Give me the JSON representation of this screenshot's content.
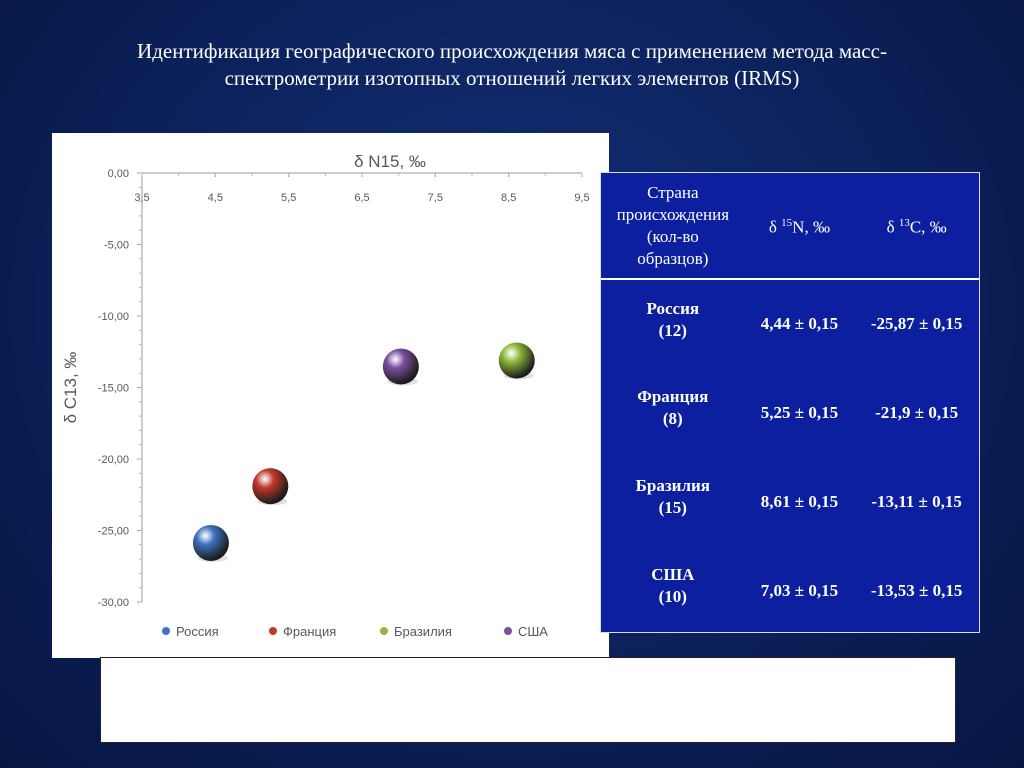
{
  "slide": {
    "title_line1": "Идентификация географического происхождения мяса с применением метода масс-",
    "title_line2": "спектрометрии изотопных отношений легких элементов (IRMS)"
  },
  "chart_data": {
    "type": "scatter",
    "title": "δ N15, ‰",
    "xlabel": "δ N15, ‰",
    "ylabel": "δ C13, ‰",
    "xlim": [
      3.5,
      9.5
    ],
    "ylim": [
      -30,
      0
    ],
    "x_axis_position": "top",
    "x_ticks": [
      "3,5",
      "4,5",
      "5,5",
      "6,5",
      "7,5",
      "8,5",
      "9,5"
    ],
    "y_ticks": [
      "0,00",
      "-5,00",
      "-10,00",
      "-15,00",
      "-20,00",
      "-25,00",
      "-30,00"
    ],
    "legend_position": "bottom",
    "series": [
      {
        "name": "Россия",
        "color": "#3f72c0",
        "x": 4.44,
        "y": -25.87
      },
      {
        "name": "Франция",
        "color": "#c0392b",
        "x": 5.25,
        "y": -21.9
      },
      {
        "name": "Бразилия",
        "color": "#8db83a",
        "x": 8.61,
        "y": -13.11
      },
      {
        "name": "США",
        "color": "#7b4fa0",
        "x": 7.03,
        "y": -13.53
      }
    ]
  },
  "table": {
    "headers": {
      "country": [
        "Страна",
        "происхождения",
        "(кол-во",
        "образцов)"
      ],
      "n15": "δ 15N, ‰",
      "c13": "δ 13C, ‰"
    },
    "rows": [
      {
        "name": "Россия",
        "count": "(12)",
        "n15": "4,44 ± 0,15",
        "c13": "-25,87 ± 0,15"
      },
      {
        "name": "Франция",
        "count": "(8)",
        "n15": "5,25 ± 0,15",
        "c13": "-21,9 ± 0,15"
      },
      {
        "name": "Бразилия",
        "count": "(15)",
        "n15": "8,61 ± 0,15",
        "c13": "-13,11 ± 0,15"
      },
      {
        "name": "США",
        "count": "(10)",
        "n15": "7,03 ± 0,15",
        "c13": "-13,53 ± 0,15"
      }
    ]
  },
  "colors": {
    "background": "#0d2460",
    "table_background": "#0c1f9e"
  }
}
